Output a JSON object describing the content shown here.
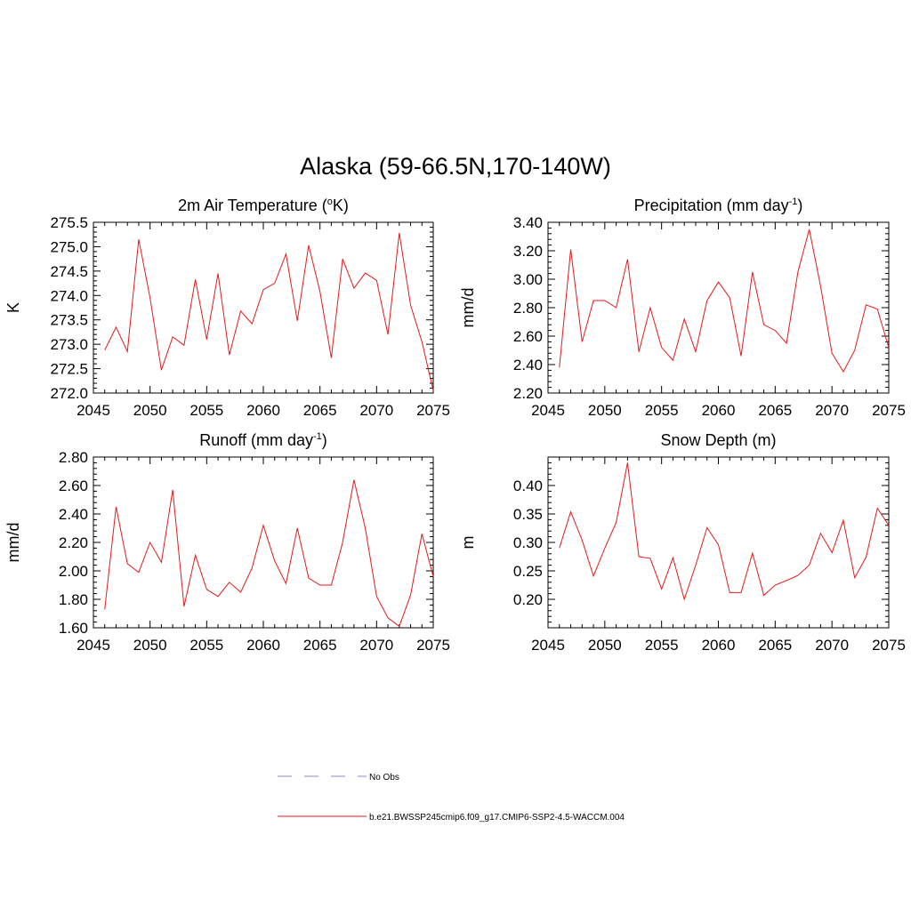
{
  "main_title": "Alaska (59-66.5N,170-140W)",
  "series_color": "#e41a1c",
  "obs_color": "#9fa0d8",
  "legend": {
    "obs_label": "No Obs",
    "model_label": "b.e21.BWSSP245cmip6.f09_g17.CMIP6-SSP2-4.5-WACCM.004"
  },
  "chart_data": [
    {
      "type": "line",
      "title": "2m Air Temperature (°K)",
      "title_main": "2m Air Temperature (",
      "title_sup": "o",
      "title_tail": "K)",
      "ylabel": "K",
      "xlim": [
        2045,
        2075
      ],
      "ylim": [
        272.0,
        275.5
      ],
      "xticks": [
        "2045",
        "2050",
        "2055",
        "2060",
        "2065",
        "2070",
        "2075"
      ],
      "yticks": [
        "272.0",
        "272.5",
        "273.0",
        "273.5",
        "274.0",
        "274.5",
        "275.0",
        "275.5"
      ],
      "x": [
        2046,
        2047,
        2048,
        2049,
        2050,
        2051,
        2052,
        2053,
        2054,
        2055,
        2056,
        2057,
        2058,
        2059,
        2060,
        2061,
        2062,
        2063,
        2064,
        2065,
        2066,
        2067,
        2068,
        2069,
        2070,
        2071,
        2072,
        2073,
        2074,
        2075
      ],
      "values": [
        272.88,
        273.35,
        272.85,
        275.15,
        273.95,
        272.47,
        273.15,
        272.98,
        274.33,
        273.1,
        274.45,
        272.78,
        273.68,
        273.42,
        274.12,
        274.25,
        274.85,
        273.48,
        275.03,
        274.08,
        272.72,
        274.75,
        274.15,
        274.46,
        274.31,
        273.2,
        275.28,
        273.8,
        273.05,
        272.05
      ],
      "grid": false
    },
    {
      "type": "line",
      "title": "Precipitation (mm day-1)",
      "title_main": "Precipitation (mm day",
      "title_sup": "-1",
      "title_tail": ")",
      "ylabel": "mm/d",
      "xlim": [
        2045,
        2075
      ],
      "ylim": [
        2.2,
        3.4
      ],
      "xticks": [
        "2045",
        "2050",
        "2055",
        "2060",
        "2065",
        "2070",
        "2075"
      ],
      "yticks": [
        "2.20",
        "2.40",
        "2.60",
        "2.80",
        "3.00",
        "3.20",
        "3.40"
      ],
      "x": [
        2046,
        2047,
        2048,
        2049,
        2050,
        2051,
        2052,
        2053,
        2054,
        2055,
        2056,
        2057,
        2058,
        2059,
        2060,
        2061,
        2062,
        2063,
        2064,
        2065,
        2066,
        2067,
        2068,
        2069,
        2070,
        2071,
        2072,
        2073,
        2074,
        2075
      ],
      "values": [
        2.38,
        3.21,
        2.56,
        2.85,
        2.85,
        2.8,
        3.14,
        2.49,
        2.8,
        2.52,
        2.43,
        2.72,
        2.49,
        2.85,
        2.98,
        2.87,
        2.46,
        3.05,
        2.68,
        2.64,
        2.55,
        3.05,
        3.35,
        2.95,
        2.48,
        2.35,
        2.5,
        2.82,
        2.79,
        2.52
      ],
      "grid": false
    },
    {
      "type": "line",
      "title": "Runoff (mm day-1)",
      "title_main": "Runoff (mm day",
      "title_sup": "-1",
      "title_tail": ")",
      "ylabel": "mm/d",
      "xlim": [
        2045,
        2075
      ],
      "ylim": [
        1.6,
        2.8
      ],
      "xticks": [
        "2045",
        "2050",
        "2055",
        "2060",
        "2065",
        "2070",
        "2075"
      ],
      "yticks": [
        "1.60",
        "1.80",
        "2.00",
        "2.20",
        "2.40",
        "2.60",
        "2.80"
      ],
      "x": [
        2046,
        2047,
        2048,
        2049,
        2050,
        2051,
        2052,
        2053,
        2054,
        2055,
        2056,
        2057,
        2058,
        2059,
        2060,
        2061,
        2062,
        2063,
        2064,
        2065,
        2066,
        2067,
        2068,
        2069,
        2070,
        2071,
        2072,
        2073,
        2074,
        2075
      ],
      "values": [
        1.73,
        2.45,
        2.05,
        1.99,
        2.2,
        2.06,
        2.57,
        1.75,
        2.11,
        1.87,
        1.82,
        1.92,
        1.85,
        2.02,
        2.32,
        2.07,
        1.91,
        2.3,
        1.95,
        1.9,
        1.9,
        2.2,
        2.64,
        2.3,
        1.82,
        1.67,
        1.61,
        1.83,
        2.26,
        1.96
      ],
      "grid": false
    },
    {
      "type": "line",
      "title": "Snow Depth (m)",
      "title_main": "Snow Depth (m)",
      "title_sup": "",
      "title_tail": "",
      "ylabel": "m",
      "xlim": [
        2045,
        2075
      ],
      "ylim": [
        0.15,
        0.45
      ],
      "ytick_values": [
        0.2,
        0.25,
        0.3,
        0.35,
        0.4
      ],
      "xticks": [
        "2045",
        "2050",
        "2055",
        "2060",
        "2065",
        "2070",
        "2075"
      ],
      "yticks": [
        "0.20",
        "0.25",
        "0.30",
        "0.35",
        "0.40"
      ],
      "x": [
        2046,
        2047,
        2048,
        2049,
        2050,
        2051,
        2052,
        2053,
        2054,
        2055,
        2056,
        2057,
        2058,
        2059,
        2060,
        2061,
        2062,
        2063,
        2064,
        2065,
        2066,
        2067,
        2068,
        2069,
        2070,
        2071,
        2072,
        2073,
        2074,
        2075
      ],
      "values": [
        0.29,
        0.354,
        0.304,
        0.241,
        0.29,
        0.335,
        0.44,
        0.275,
        0.272,
        0.218,
        0.273,
        0.2,
        0.26,
        0.326,
        0.296,
        0.212,
        0.212,
        0.281,
        0.207,
        0.225,
        0.233,
        0.242,
        0.26,
        0.316,
        0.282,
        0.339,
        0.238,
        0.274,
        0.36,
        0.33
      ],
      "grid": false
    }
  ]
}
